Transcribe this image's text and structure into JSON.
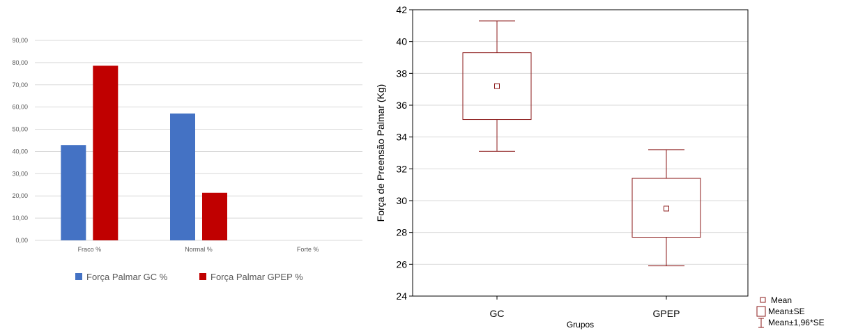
{
  "chart_data": [
    {
      "type": "bar",
      "title": "",
      "xlabel": "",
      "ylabel": "",
      "categories": [
        "Fraco %",
        "Normal %",
        "Forte %"
      ],
      "ylim": [
        0,
        90
      ],
      "yticks": [
        "0,00",
        "10,00",
        "20,00",
        "30,00",
        "40,00",
        "50,00",
        "60,00",
        "70,00",
        "80,00",
        "90,00"
      ],
      "grid": true,
      "legend_position": "bottom",
      "series": [
        {
          "name": "Força Palmar GC %",
          "color": "#4472C4",
          "values": [
            42.9,
            57.1,
            0
          ]
        },
        {
          "name": "Força Palmar GPEP %",
          "color": "#C00000",
          "values": [
            78.6,
            21.4,
            0
          ]
        }
      ]
    },
    {
      "type": "box",
      "title": "",
      "xlabel": "Grupos",
      "ylabel": "Força de Preensão Palmar (Kg)",
      "categories": [
        "GC",
        "GPEP"
      ],
      "ylim": [
        24,
        42
      ],
      "yticks": [
        "24",
        "26",
        "28",
        "30",
        "32",
        "34",
        "36",
        "38",
        "40",
        "42"
      ],
      "grid": true,
      "color": "#8B1A1A",
      "legend_position": "bottom-right",
      "legend": [
        "Mean",
        "Mean±SE",
        "Mean±1,96*SE"
      ],
      "boxes": [
        {
          "category": "GC",
          "mean": 37.2,
          "se_low": 35.1,
          "se_high": 39.3,
          "ci_low": 33.1,
          "ci_high": 41.3
        },
        {
          "category": "GPEP",
          "mean": 29.5,
          "se_low": 27.7,
          "se_high": 31.4,
          "ci_low": 25.9,
          "ci_high": 33.2
        }
      ]
    }
  ]
}
